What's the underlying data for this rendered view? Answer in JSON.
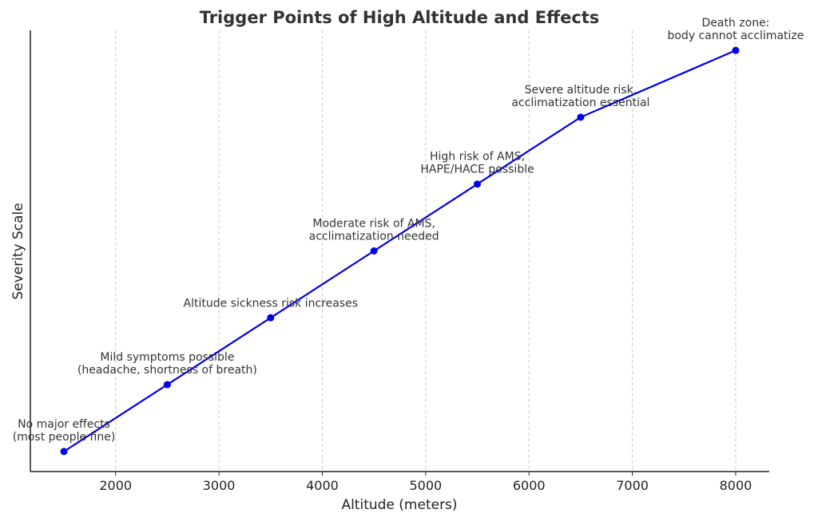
{
  "chart_data": {
    "type": "line",
    "title": "Trigger Points of High Altitude and Effects",
    "xlabel": "Altitude (meters)",
    "ylabel": "Severity Scale",
    "x": [
      1500,
      2500,
      3500,
      4500,
      5500,
      6500,
      8000
    ],
    "y": [
      1,
      2,
      3,
      4,
      5,
      6,
      7
    ],
    "annotations": [
      "No major effects\n(most people fine)",
      "Mild symptoms possible\n(headache, shortness of breath)",
      "Altitude sickness risk increases",
      "Moderate risk of AMS,\nacclimatization needed",
      "High risk of AMS,\nHAPE/HACE possible",
      "Severe altitude risk,\nacclimatization essential",
      "Death zone:\nbody cannot acclimatize"
    ],
    "xticks": [
      2000,
      3000,
      4000,
      5000,
      6000,
      7000,
      8000
    ],
    "xlim": [
      1175,
      8325
    ],
    "ylim": [
      0.7,
      7.3
    ],
    "yticks_shown": false,
    "grid": "vertical dashed",
    "line_color": "#0000ee",
    "marker": "circle"
  }
}
